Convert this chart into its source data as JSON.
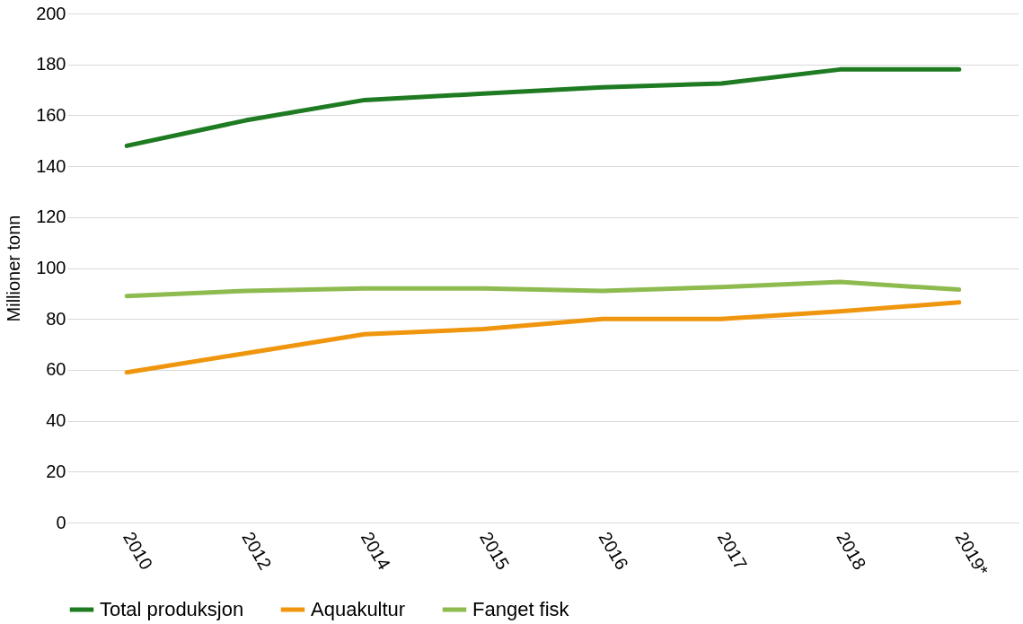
{
  "chart_data": {
    "type": "line",
    "ylabel": "Millioner tonn",
    "categories": [
      "2010",
      "2012",
      "2014",
      "2015",
      "2016",
      "2017",
      "2018",
      "2019*"
    ],
    "series": [
      {
        "name": "Total produksjon",
        "color": "#1e7b22",
        "values": [
          148,
          158,
          166,
          168.5,
          171,
          172.5,
          178,
          178
        ]
      },
      {
        "name": "Aquakultur",
        "color": "#f0960e",
        "values": [
          59,
          66.5,
          74,
          76,
          80,
          80,
          83,
          86.5
        ]
      },
      {
        "name": "Fanget fisk",
        "color": "#8dbb4f",
        "values": [
          89,
          91,
          92,
          92,
          91,
          92.5,
          94.5,
          91.5
        ]
      }
    ],
    "ylim": [
      0,
      200
    ],
    "yticks": [
      0,
      20,
      40,
      60,
      80,
      100,
      120,
      140,
      160,
      180,
      200
    ],
    "grid": "y",
    "legend": "bottom",
    "marker": "none",
    "line_style": "solid"
  }
}
